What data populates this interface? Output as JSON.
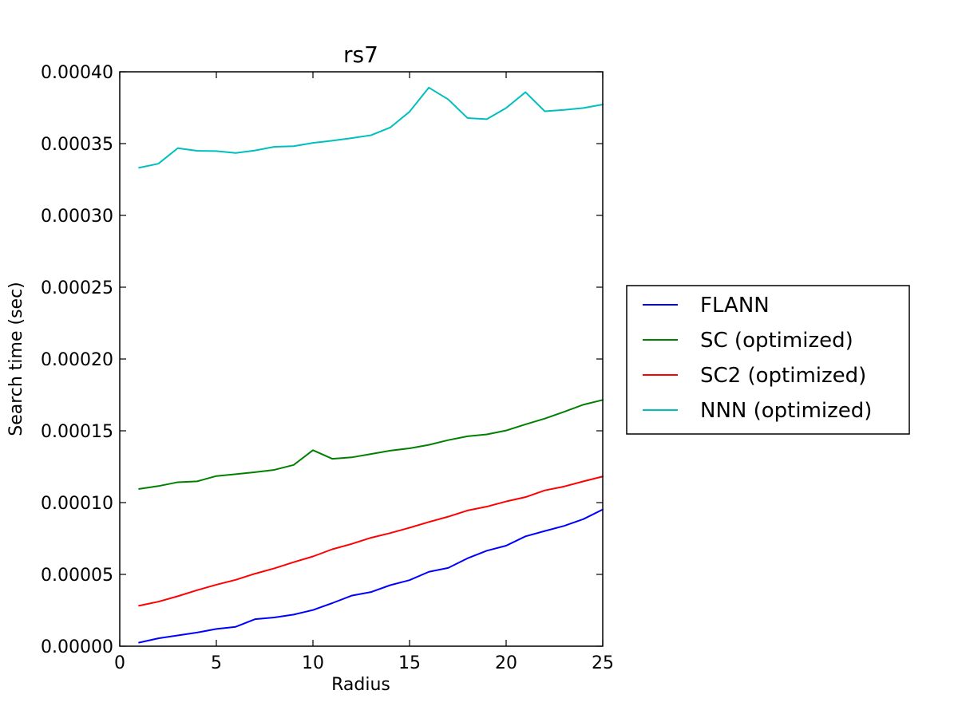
{
  "chart_data": {
    "type": "line",
    "title": "rs7",
    "xlabel": "Radius",
    "ylabel": "Search time (sec)",
    "xlim": [
      0,
      25
    ],
    "ylim": [
      0,
      0.0004
    ],
    "xticks": [
      0,
      5,
      10,
      15,
      20,
      25
    ],
    "yticks": [
      0,
      5e-05,
      0.0001,
      0.00015,
      0.0002,
      0.00025,
      0.0003,
      0.00035,
      0.0004
    ],
    "xtick_labels": [
      "0",
      "5",
      "10",
      "15",
      "20",
      "25"
    ],
    "ytick_labels": [
      "0.00000",
      "0.00005",
      "0.00010",
      "0.00015",
      "0.00020",
      "0.00025",
      "0.00030",
      "0.00035",
      "0.00040"
    ],
    "grid": false,
    "legend_position": "outside-right",
    "x": [
      1,
      2,
      3,
      4,
      5,
      6,
      7,
      8,
      9,
      10,
      11,
      12,
      13,
      14,
      15,
      16,
      17,
      18,
      19,
      20,
      21,
      22,
      23,
      24,
      25
    ],
    "series": [
      {
        "name": "FLANN",
        "color": "#0000ff",
        "values": [
          2.5e-06,
          5.5e-06,
          7.5e-06,
          9.5e-06,
          1.2e-05,
          1.35e-05,
          1.88e-05,
          2e-05,
          2.2e-05,
          2.52e-05,
          3e-05,
          3.52e-05,
          3.77e-05,
          4.25e-05,
          4.6e-05,
          5.18e-05,
          5.45e-05,
          6.12e-05,
          6.65e-05,
          7e-05,
          7.65e-05,
          8.02e-05,
          8.38e-05,
          8.85e-05,
          9.52e-05
        ]
      },
      {
        "name": "SC (optimized)",
        "color": "#008000",
        "values": [
          0.0001095,
          0.0001115,
          0.0001142,
          0.0001148,
          0.0001185,
          0.0001198,
          0.0001212,
          0.0001228,
          0.0001262,
          0.0001365,
          0.0001305,
          0.0001315,
          0.0001338,
          0.0001362,
          0.0001378,
          0.0001402,
          0.0001435,
          0.0001462,
          0.0001475,
          0.0001502,
          0.0001545,
          0.0001585,
          0.0001632,
          0.0001682,
          0.0001715
        ]
      },
      {
        "name": "SC2 (optimized)",
        "color": "#ff0000",
        "values": [
          2.82e-05,
          3.1e-05,
          3.48e-05,
          3.9e-05,
          4.28e-05,
          4.62e-05,
          5.05e-05,
          5.42e-05,
          5.85e-05,
          6.25e-05,
          6.75e-05,
          7.12e-05,
          7.55e-05,
          7.88e-05,
          8.25e-05,
          8.65e-05,
          9.02e-05,
          9.45e-05,
          9.72e-05,
          0.0001008,
          0.0001038,
          0.0001085,
          0.0001112,
          0.0001148,
          0.0001182
        ]
      },
      {
        "name": "NNN (optimized)",
        "color": "#00bfbf",
        "values": [
          0.0003332,
          0.000336,
          0.0003468,
          0.000345,
          0.0003448,
          0.0003435,
          0.0003452,
          0.0003478,
          0.0003482,
          0.0003505,
          0.000352,
          0.0003538,
          0.0003558,
          0.0003612,
          0.0003722,
          0.000389,
          0.0003808,
          0.0003678,
          0.000367,
          0.0003748,
          0.0003858,
          0.0003725,
          0.0003735,
          0.0003748,
          0.0003772
        ]
      }
    ]
  }
}
